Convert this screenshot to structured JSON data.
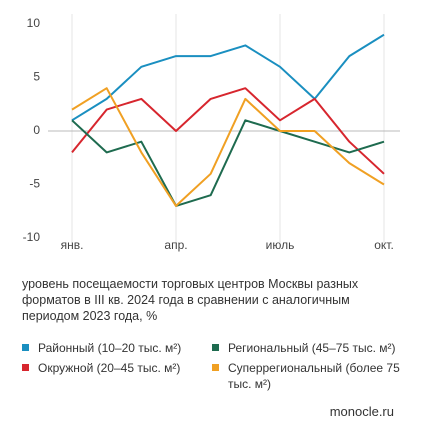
{
  "chart_data": {
    "type": "line",
    "categories": [
      "янв.",
      null,
      null,
      "апр.",
      null,
      null,
      "июль",
      null,
      null,
      "окт."
    ],
    "series": [
      {
        "name": "Районный (10–20 тыс. м²)",
        "color": "#1a8fc0",
        "values": [
          1,
          3,
          6,
          7,
          7,
          8,
          6,
          3,
          7,
          9
        ]
      },
      {
        "name": "Окружной (20–45 тыс. м²)",
        "color": "#d7262e",
        "values": [
          -2,
          2,
          3,
          0,
          3,
          4,
          1,
          3,
          -1,
          -4
        ]
      },
      {
        "name": "Региональный (45–75 тыс. м²)",
        "color": "#1e6b4f",
        "values": [
          1,
          -2,
          -1,
          -7,
          -6,
          1,
          0,
          -1,
          -2,
          -1
        ]
      },
      {
        "name": "Суперрегиональный (более 75 тыс. м²)",
        "color": "#f0a023",
        "values": [
          2,
          4,
          -2,
          -7,
          -4,
          3,
          0,
          0,
          -3,
          -5
        ]
      }
    ],
    "ylim": [
      -10,
      10
    ],
    "yticks": [
      10,
      5,
      0,
      -5,
      -10
    ],
    "caption": "уровень посещаемости торговых центров Москвы разных форматов в III кв. 2024 года в сравнении с аналогичным периодом 2023 года, %",
    "source": "monocle.ru"
  }
}
